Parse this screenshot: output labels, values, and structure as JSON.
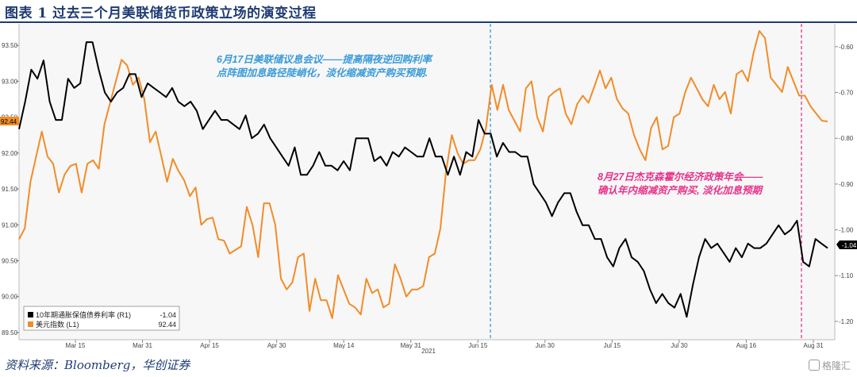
{
  "header": {
    "title": "图表 1  过去三个月美联储货币政策立场的演变过程"
  },
  "footer": {
    "source": "资料来源：Bloomberg，华创证券",
    "watermark": "格隆汇"
  },
  "chart_data": {
    "type": "line",
    "x_tick_labels": [
      "Mar 15",
      "Mar 31",
      "Apr 15",
      "Apr 30",
      "May 14",
      "May 31",
      "Jun 15",
      "Jun 30",
      "Jul 15",
      "Jul 30",
      "Aug 16",
      "Aug 31"
    ],
    "x_year_label": "2021",
    "left_axis": {
      "ticks": [
        "93.50",
        "93.00",
        "92.50",
        "92.00",
        "91.50",
        "91.00",
        "90.50",
        "90.00",
        "89.50"
      ],
      "range": [
        89.4,
        93.8
      ]
    },
    "right_axis": {
      "ticks": [
        "-0.60",
        "-0.70",
        "-0.80",
        "-0.90",
        "-1.00",
        "-1.10",
        "-1.20"
      ],
      "range": [
        -1.24,
        -0.55
      ]
    },
    "legend": [
      {
        "name": "10年期通胀保值债券利率 (R1)",
        "last": "-1.04",
        "color": "#000000"
      },
      {
        "name": "美元指数 (L1)",
        "last": "92.44",
        "color": "#f28c28"
      }
    ],
    "last_value_labels": {
      "left": "92.44",
      "right": "-1.04"
    },
    "colors": {
      "usd": "#f28c28",
      "tips": "#000000",
      "annotation1": "#3a9bd9",
      "annotation2": "#e8338a",
      "plot_bg": "#f7f7f7"
    },
    "series": [
      {
        "name": "美元指数 (L1)",
        "axis": "left",
        "values": [
          90.8,
          90.95,
          91.6,
          91.95,
          92.3,
          91.95,
          91.85,
          91.45,
          91.7,
          91.82,
          91.85,
          91.45,
          91.85,
          91.9,
          91.78,
          92.4,
          92.7,
          93.0,
          93.3,
          93.22,
          92.95,
          93.05,
          92.75,
          92.15,
          92.3,
          91.95,
          91.6,
          91.92,
          91.75,
          91.62,
          91.4,
          91.52,
          91.0,
          91.08,
          91.1,
          90.8,
          90.78,
          90.6,
          90.65,
          90.7,
          91.25,
          91.0,
          90.55,
          91.3,
          91.3,
          91.0,
          90.25,
          90.1,
          90.2,
          90.55,
          90.6,
          89.8,
          90.25,
          89.95,
          89.95,
          89.7,
          90.3,
          90.1,
          89.9,
          89.85,
          89.75,
          90.25,
          90.05,
          90.1,
          89.85,
          89.9,
          90.45,
          90.25,
          90.0,
          90.1,
          90.1,
          90.15,
          90.55,
          90.6,
          90.95,
          91.75,
          92.25,
          92.0,
          91.85,
          91.9,
          91.9,
          92.05,
          92.35,
          92.95,
          92.6,
          92.95,
          92.6,
          92.45,
          92.3,
          92.9,
          93.0,
          92.5,
          92.3,
          92.78,
          92.85,
          92.9,
          92.55,
          92.4,
          92.68,
          92.8,
          92.7,
          92.92,
          93.15,
          92.9,
          93.05,
          92.75,
          92.62,
          92.55,
          92.25,
          92.05,
          91.9,
          92.35,
          92.5,
          92.05,
          92.1,
          92.5,
          92.55,
          92.85,
          93.05,
          92.9,
          92.75,
          92.65,
          92.95,
          92.75,
          92.85,
          92.55,
          93.1,
          93.15,
          93.0,
          93.4,
          93.7,
          93.6,
          93.05,
          92.95,
          92.85,
          93.2,
          93.0,
          92.8,
          92.8,
          92.65,
          92.55,
          92.45,
          92.44
        ]
      },
      {
        "name": "10年期通胀保值债券利率 (R1)",
        "axis": "right",
        "values": [
          -0.78,
          -0.72,
          -0.65,
          -0.67,
          -0.63,
          -0.72,
          -0.76,
          -0.76,
          -0.67,
          -0.69,
          -0.68,
          -0.59,
          -0.59,
          -0.65,
          -0.7,
          -0.72,
          -0.7,
          -0.69,
          -0.66,
          -0.66,
          -0.71,
          -0.68,
          -0.69,
          -0.7,
          -0.71,
          -0.69,
          -0.72,
          -0.73,
          -0.72,
          -0.74,
          -0.78,
          -0.76,
          -0.74,
          -0.76,
          -0.76,
          -0.77,
          -0.78,
          -0.75,
          -0.8,
          -0.79,
          -0.77,
          -0.8,
          -0.82,
          -0.84,
          -0.86,
          -0.82,
          -0.88,
          -0.88,
          -0.86,
          -0.83,
          -0.86,
          -0.86,
          -0.87,
          -0.85,
          -0.87,
          -0.8,
          -0.8,
          -0.8,
          -0.85,
          -0.84,
          -0.86,
          -0.83,
          -0.84,
          -0.82,
          -0.83,
          -0.84,
          -0.84,
          -0.8,
          -0.84,
          -0.84,
          -0.88,
          -0.84,
          -0.88,
          -0.83,
          -0.84,
          -0.76,
          -0.79,
          -0.79,
          -0.84,
          -0.81,
          -0.83,
          -0.83,
          -0.84,
          -0.84,
          -0.9,
          -0.92,
          -0.94,
          -0.97,
          -0.94,
          -0.92,
          -0.92,
          -0.96,
          -0.99,
          -0.99,
          -1.02,
          -1.02,
          -1.06,
          -1.08,
          -1.04,
          -1.02,
          -1.06,
          -1.07,
          -1.09,
          -1.13,
          -1.16,
          -1.14,
          -1.16,
          -1.17,
          -1.14,
          -1.19,
          -1.12,
          -1.06,
          -1.02,
          -1.04,
          -1.03,
          -1.05,
          -1.07,
          -1.04,
          -1.06,
          -1.03,
          -1.04,
          -1.04,
          -1.03,
          -1.01,
          -0.99,
          -1.01,
          -1.0,
          -0.98,
          -1.07,
          -1.08,
          -1.02,
          -1.03,
          -1.04
        ]
      }
    ],
    "annotations": [
      {
        "text_line1": "6月17日美联储议息会议——提高隔夜逆回购利率",
        "text_line2": "点阵图加息路径陡峭化，淡化缩减资产购买预期.",
        "color": "#3a9bd9"
      },
      {
        "text_line1": "8月27日杰克森霍尔经济政策年会——",
        "text_line2": "确认年内缩减资产购买, 淡化加息预期",
        "color": "#e8338a"
      }
    ]
  }
}
